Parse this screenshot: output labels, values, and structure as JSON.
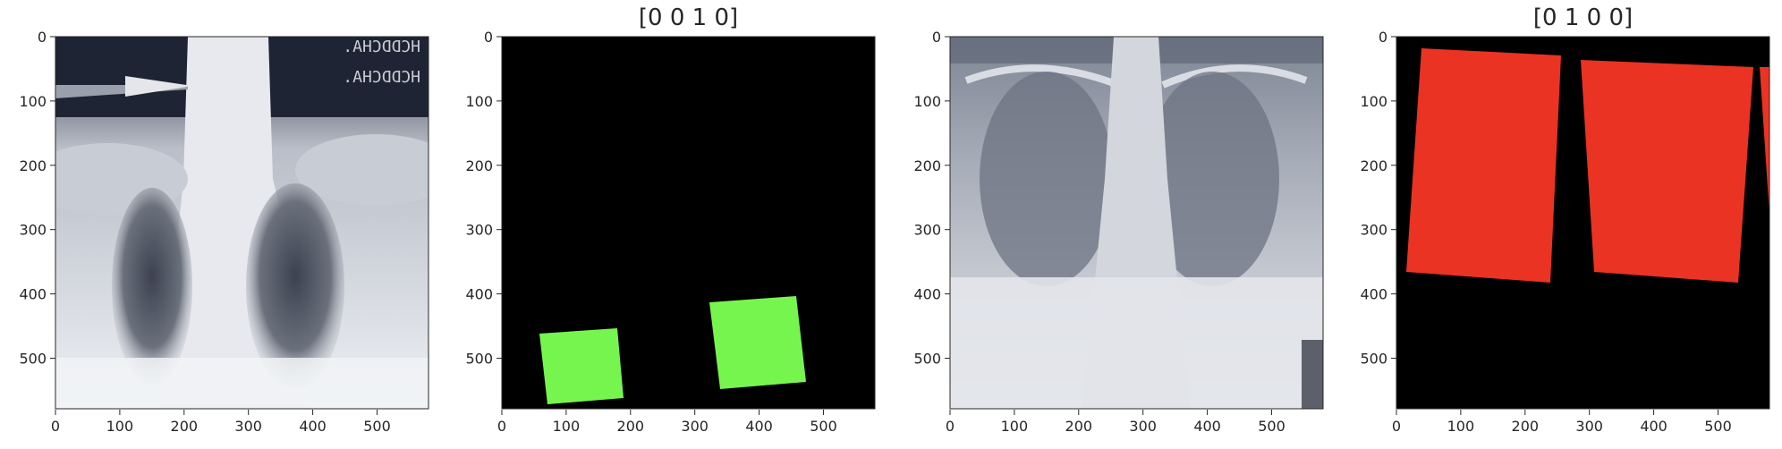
{
  "figure": {
    "panels": [
      {
        "kind": "xray",
        "title": "",
        "xticks": [
          "0",
          "100",
          "200",
          "300",
          "400",
          "500"
        ],
        "yticks": [
          "0",
          "100",
          "200",
          "300",
          "400",
          "500"
        ],
        "overlay_text": [
          "HCDDCHA.",
          "HCDDCHA."
        ]
      },
      {
        "kind": "mask",
        "title": "[0 0 1 0]",
        "mask_color": "#77f54f",
        "xticks": [
          "0",
          "100",
          "200",
          "300",
          "400",
          "500"
        ],
        "yticks": [
          "0",
          "100",
          "200",
          "300",
          "400",
          "500"
        ]
      },
      {
        "kind": "xray",
        "title": "",
        "xticks": [
          "0",
          "100",
          "200",
          "300",
          "400",
          "500"
        ],
        "yticks": [
          "0",
          "100",
          "200",
          "300",
          "400",
          "500"
        ]
      },
      {
        "kind": "mask",
        "title": "[0 1 0 0]",
        "mask_color": "#ea3323",
        "xticks": [
          "0",
          "100",
          "200",
          "300",
          "400",
          "500"
        ],
        "yticks": [
          "0",
          "100",
          "200",
          "300",
          "400",
          "500"
        ]
      }
    ]
  },
  "colors": {
    "background": "#ffffff",
    "mask_background": "#000000",
    "green": "#77f54f",
    "red": "#ea3323",
    "text": "#262626"
  }
}
